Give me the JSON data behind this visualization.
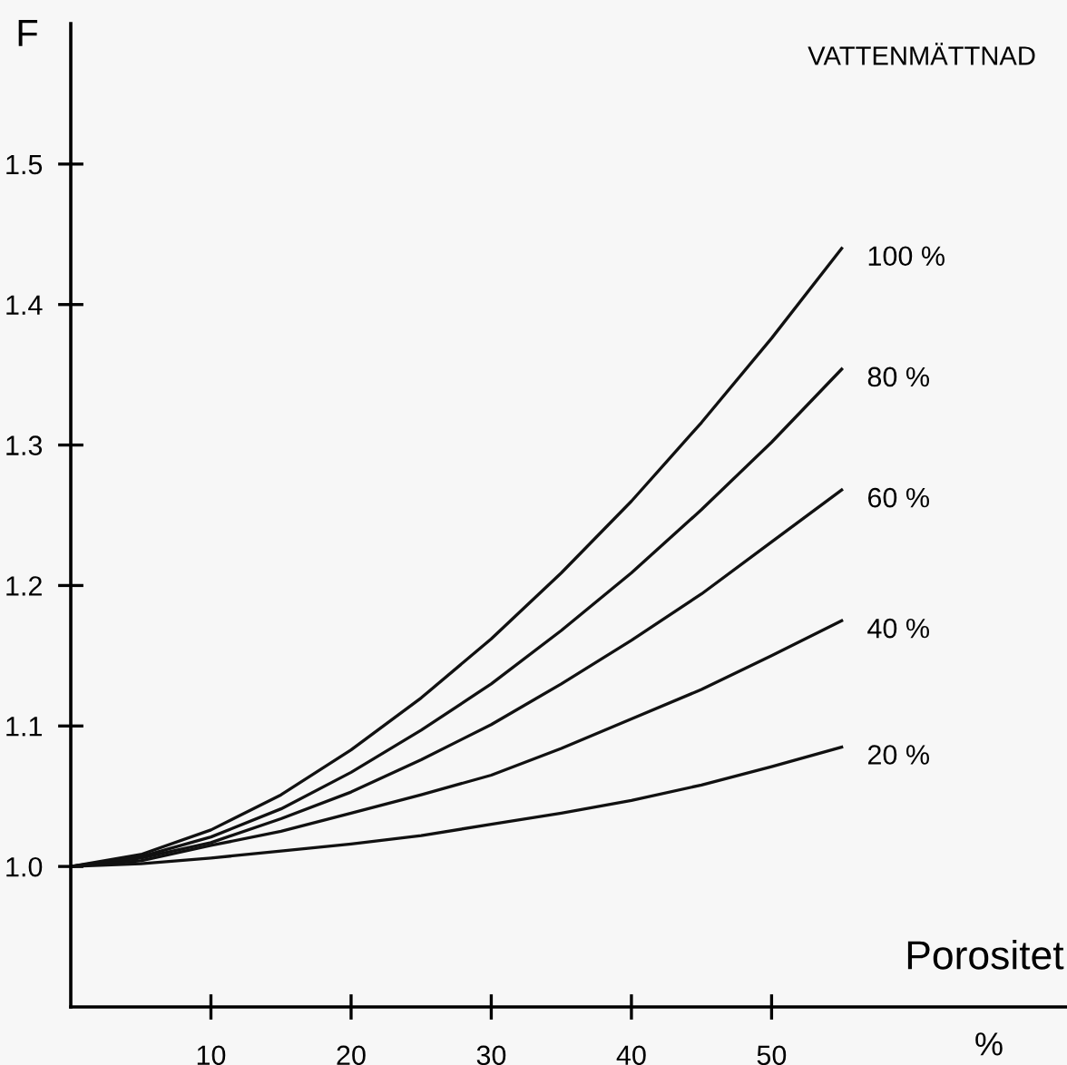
{
  "chart_data": {
    "type": "line",
    "ylabel": "F",
    "xlabel": "Porositet",
    "legend_title": "VATTENMÄTTNAD",
    "annotations": [
      "%"
    ],
    "x": [
      0,
      5,
      10,
      15,
      20,
      25,
      30,
      35,
      40,
      45,
      50,
      55
    ],
    "series": [
      {
        "name": "100 %",
        "color": "#111111",
        "values": [
          1.0,
          1.0085,
          1.026,
          1.051,
          1.083,
          1.12,
          1.162,
          1.209,
          1.26,
          1.316,
          1.376,
          1.44
        ]
      },
      {
        "name": "80 %",
        "color": "#111111",
        "values": [
          1.0,
          1.007,
          1.021,
          1.041,
          1.067,
          1.097,
          1.13,
          1.168,
          1.209,
          1.254,
          1.302,
          1.354
        ]
      },
      {
        "name": "60 %",
        "color": "#111111",
        "values": [
          1.0,
          1.006,
          1.017,
          1.034,
          1.053,
          1.076,
          1.101,
          1.13,
          1.161,
          1.194,
          1.231,
          1.268
        ]
      },
      {
        "name": "40 %",
        "color": "#111111",
        "values": [
          1.0,
          1.004,
          1.015,
          1.025,
          1.038,
          1.051,
          1.065,
          1.084,
          1.105,
          1.126,
          1.15,
          1.175
        ]
      },
      {
        "name": "20 %",
        "color": "#111111",
        "values": [
          1.0,
          1.002,
          1.006,
          1.011,
          1.016,
          1.022,
          1.03,
          1.038,
          1.047,
          1.058,
          1.071,
          1.085
        ]
      }
    ],
    "xlim": [
      0,
      71
    ],
    "ylim": [
      0.9,
      1.6
    ],
    "xticks": [
      10,
      20,
      30,
      40,
      50
    ],
    "yticks": [
      {
        "value": 1.0,
        "label": "1.0"
      },
      1.1,
      1.2,
      1.3,
      1.4,
      1.5
    ],
    "grid": false,
    "legend": false,
    "marker": "none",
    "line_style": "solid"
  }
}
